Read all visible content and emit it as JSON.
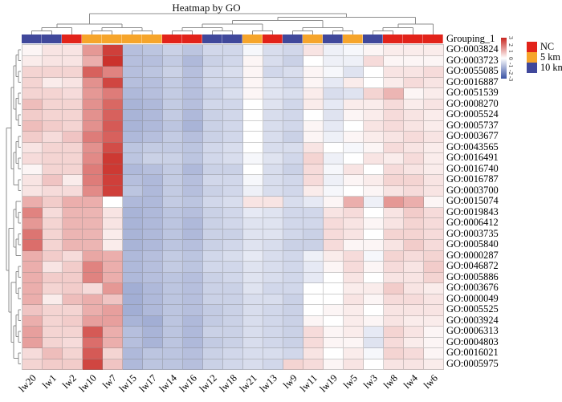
{
  "title": "Heatmap by GO",
  "annotation_row_label": "Grouping_1",
  "legend": {
    "colorbar": {
      "ticks": [
        "3",
        "2",
        "1",
        "0",
        "-1",
        "-2",
        "-3"
      ],
      "high_color": "#C8251F",
      "mid_color": "#FFFFFF",
      "low_color": "#3A53A4"
    },
    "groups": [
      {
        "label": "NC",
        "color": "#E2231A"
      },
      {
        "label": "5 km",
        "color": "#F6A52B"
      },
      {
        "label": "10 km",
        "color": "#40489B"
      }
    ]
  },
  "chart_data": {
    "type": "heatmap",
    "title": "Heatmap by GO",
    "clustered": true,
    "value_range": [
      -3,
      3
    ],
    "color_scale": {
      "high": "#C8251F",
      "mid": "#FFFFFF",
      "low": "#3A53A4",
      "domain": [
        -3,
        0,
        3
      ]
    },
    "columns": [
      "lw20",
      "lw1",
      "lw2",
      "lw10",
      "lw7",
      "lw15",
      "lw17",
      "lw14",
      "lw16",
      "lw12",
      "lw18",
      "lw21",
      "lw13",
      "lw9",
      "lw11",
      "lw19",
      "lw5",
      "lw3",
      "lw8",
      "lw4",
      "lw6"
    ],
    "column_groups": [
      "10 km",
      "10 km",
      "NC",
      "5 km",
      "5 km",
      "5 km",
      "5 km",
      "NC",
      "NC",
      "10 km",
      "10 km",
      "5 km",
      "NC",
      "10 km",
      "5 km",
      "10 km",
      "5 km",
      "10 km",
      "NC",
      "NC",
      "NC"
    ],
    "rows": [
      "GO:0003824",
      "GO:0003723",
      "GO:0055085",
      "GO:0016887",
      "GO:0051539",
      "GO:0008270",
      "GO:0005524",
      "GO:0005737",
      "GO:0003677",
      "GO:0043565",
      "GO:0016491",
      "GO:0016740",
      "GO:0016787",
      "GO:0003700",
      "GO:0015074",
      "GO:0019843",
      "GO:0006412",
      "GO:0003735",
      "GO:0005840",
      "GO:0000287",
      "GO:0046872",
      "GO:0005886",
      "GO:0003676",
      "GO:0000049",
      "GO:0005525",
      "GO:0003924",
      "GO:0006313",
      "GO:0004803",
      "GO:0016021",
      "GO:0005975"
    ],
    "values": [
      [
        0.1,
        0.3,
        0.3,
        1.3,
        2.6,
        -1.0,
        -0.9,
        -0.7,
        -0.9,
        -0.6,
        -0.6,
        -0.1,
        -0.5,
        -0.6,
        0.3,
        -0.2,
        -0.1,
        0.1,
        0.2,
        0.2,
        0.2
      ],
      [
        0.2,
        0.3,
        0.3,
        1.0,
        2.8,
        -1.0,
        -1.0,
        -0.8,
        -1.1,
        -0.7,
        -0.6,
        0.1,
        -0.5,
        -0.7,
        0.0,
        -0.2,
        -0.2,
        0.4,
        0.1,
        0.1,
        0.1
      ],
      [
        0.5,
        0.5,
        0.5,
        2.1,
        1.6,
        -1.0,
        -0.9,
        -0.7,
        -1.0,
        -0.6,
        -0.5,
        0.1,
        -0.6,
        -0.5,
        0.1,
        -0.1,
        -0.4,
        0.0,
        0.3,
        0.3,
        0.4
      ],
      [
        0.5,
        0.2,
        0.3,
        1.4,
        2.5,
        -1.0,
        -1.0,
        -0.8,
        -1.0,
        -0.6,
        -0.6,
        0.1,
        -0.4,
        -0.6,
        0.1,
        -0.3,
        0.2,
        0.0,
        0.2,
        0.4,
        0.3
      ],
      [
        0.5,
        0.5,
        0.4,
        1.3,
        1.7,
        -1.1,
        -1.0,
        -0.8,
        -1.0,
        -0.7,
        -0.5,
        0.1,
        -0.4,
        -0.5,
        0.2,
        -0.5,
        -0.4,
        0.5,
        0.9,
        0.1,
        0.2
      ],
      [
        0.8,
        0.5,
        0.5,
        1.4,
        2.0,
        -1.2,
        -1.1,
        -0.8,
        -1.0,
        -0.6,
        -0.6,
        0.0,
        -0.4,
        -0.6,
        0.2,
        -0.3,
        0.2,
        0.2,
        0.4,
        0.2,
        0.3
      ],
      [
        0.6,
        0.5,
        0.5,
        1.4,
        2.1,
        -1.2,
        -1.1,
        -0.8,
        -1.1,
        -0.7,
        -0.6,
        0.0,
        -0.5,
        -0.6,
        0.0,
        -0.4,
        0.1,
        0.2,
        0.4,
        0.3,
        0.2
      ],
      [
        0.8,
        0.6,
        0.5,
        1.4,
        2.2,
        -1.2,
        -1.1,
        -0.9,
        -1.2,
        -0.7,
        -0.6,
        0.0,
        -0.5,
        -0.6,
        0.1,
        -0.3,
        0.0,
        0.3,
        0.4,
        0.3,
        0.2
      ],
      [
        0.6,
        0.4,
        0.7,
        1.7,
        2.1,
        -1.1,
        -1.0,
        -0.8,
        -1.0,
        -0.7,
        -0.6,
        0.0,
        -0.5,
        -0.7,
        0.1,
        -0.2,
        0.1,
        0.2,
        0.3,
        0.4,
        0.3
      ],
      [
        0.3,
        0.5,
        0.5,
        1.4,
        2.4,
        -0.9,
        -0.8,
        -0.8,
        -0.9,
        -0.6,
        -0.5,
        0.0,
        -0.5,
        -0.5,
        0.3,
        0.0,
        -0.1,
        0.1,
        0.4,
        0.3,
        0.2
      ],
      [
        0.4,
        0.5,
        0.5,
        1.5,
        2.7,
        -0.9,
        -0.7,
        -0.7,
        -0.9,
        -0.6,
        -0.5,
        -0.1,
        -0.4,
        -0.6,
        0.5,
        -0.2,
        0.0,
        0.3,
        0.2,
        0.4,
        0.2
      ],
      [
        0.1,
        0.5,
        0.5,
        1.7,
        2.7,
        -1.1,
        -1.0,
        -0.8,
        -1.1,
        -0.7,
        -0.7,
        0.0,
        -0.5,
        -0.7,
        0.4,
        -0.1,
        0.3,
        0.0,
        0.4,
        0.3,
        0.2
      ],
      [
        0.3,
        0.7,
        0.2,
        1.7,
        2.6,
        -1.0,
        -1.1,
        -0.8,
        -1.0,
        -0.6,
        -0.6,
        -0.1,
        -0.5,
        -0.6,
        0.4,
        -0.2,
        0.1,
        0.2,
        0.5,
        0.5,
        0.3
      ],
      [
        0.3,
        0.4,
        0.4,
        1.5,
        2.6,
        -0.9,
        -1.1,
        -0.8,
        -1.0,
        -0.7,
        -0.6,
        -0.2,
        -0.5,
        -0.6,
        0.2,
        -0.1,
        0.0,
        0.1,
        0.3,
        0.4,
        0.3
      ],
      [
        1.0,
        0.6,
        1.0,
        1.0,
        0.0,
        -1.1,
        -1.1,
        -0.8,
        -0.9,
        -0.6,
        -0.5,
        0.3,
        0.3,
        -0.5,
        -0.3,
        0.1,
        1.0,
        -0.2,
        1.3,
        1.0,
        0.1
      ],
      [
        1.6,
        0.4,
        0.9,
        0.9,
        0.3,
        -1.2,
        -1.1,
        -0.9,
        -1.0,
        -0.7,
        -0.6,
        -0.3,
        -0.4,
        -0.6,
        -0.6,
        0.3,
        0.4,
        0.0,
        0.3,
        0.6,
        0.4
      ],
      [
        1.3,
        0.5,
        0.9,
        0.9,
        0.3,
        -1.2,
        -1.1,
        -0.9,
        -1.1,
        -0.7,
        -0.6,
        -0.4,
        -0.4,
        -0.6,
        -0.6,
        0.4,
        0.3,
        0.1,
        0.3,
        0.5,
        0.4
      ],
      [
        1.8,
        0.5,
        0.9,
        0.9,
        0.2,
        -1.2,
        -1.1,
        -0.9,
        -1.1,
        -0.7,
        -0.7,
        -0.4,
        -0.4,
        -0.6,
        -0.7,
        0.4,
        0.3,
        0.0,
        0.5,
        0.5,
        0.4
      ],
      [
        1.9,
        0.5,
        0.9,
        0.9,
        0.2,
        -1.2,
        -1.1,
        -0.9,
        -1.0,
        -0.7,
        -0.6,
        -0.4,
        -0.5,
        -0.7,
        -0.7,
        0.4,
        0.1,
        0.1,
        0.3,
        0.6,
        0.4
      ],
      [
        1.0,
        0.6,
        0.4,
        1.1,
        1.0,
        -1.1,
        -1.0,
        -0.8,
        -0.9,
        -0.6,
        -0.5,
        -0.3,
        -0.5,
        -0.6,
        -0.2,
        0.2,
        0.4,
        -0.1,
        0.5,
        0.4,
        0.5
      ],
      [
        1.0,
        0.3,
        0.6,
        1.6,
        1.0,
        -1.1,
        -1.0,
        -0.8,
        -0.9,
        -0.6,
        -0.6,
        -0.4,
        -0.5,
        -0.6,
        -0.3,
        0.1,
        0.4,
        0.1,
        0.4,
        0.3,
        0.6
      ],
      [
        1.0,
        0.6,
        0.6,
        1.6,
        1.0,
        -1.1,
        -1.0,
        -0.9,
        -1.0,
        -0.7,
        -0.6,
        -0.4,
        -0.5,
        -0.6,
        -0.3,
        0.0,
        0.3,
        0.0,
        0.3,
        0.3,
        0.5
      ],
      [
        1.0,
        0.5,
        0.6,
        0.4,
        1.3,
        -1.3,
        -1.1,
        -0.9,
        -1.0,
        -0.7,
        -0.7,
        -0.4,
        -0.6,
        -0.6,
        0.0,
        0.0,
        0.2,
        0.2,
        0.6,
        0.3,
        0.2
      ],
      [
        1.0,
        0.2,
        0.8,
        1.0,
        0.7,
        -1.3,
        -1.1,
        -0.9,
        -1.0,
        -0.7,
        -0.7,
        -0.5,
        -0.5,
        -0.7,
        0.0,
        0.0,
        0.3,
        0.1,
        0.4,
        0.4,
        0.3
      ],
      [
        0.7,
        0.5,
        0.5,
        1.0,
        1.2,
        -1.3,
        -1.1,
        -0.9,
        -1.0,
        -0.8,
        -0.7,
        -0.5,
        -0.6,
        -0.7,
        0.0,
        0.1,
        0.2,
        0.0,
        0.3,
        0.3,
        0.3
      ],
      [
        1.0,
        0.5,
        0.6,
        1.2,
        1.2,
        -1.2,
        -1.3,
        -0.9,
        -1.1,
        -0.8,
        -0.7,
        -0.5,
        -0.6,
        -0.7,
        0.1,
        0.0,
        0.2,
        0.1,
        0.3,
        0.2,
        0.2
      ],
      [
        1.2,
        0.5,
        0.5,
        2.2,
        1.0,
        -1.0,
        -1.2,
        -0.9,
        -1.1,
        -0.7,
        -0.7,
        -0.5,
        -0.6,
        -0.7,
        0.4,
        0.1,
        0.2,
        -0.3,
        0.5,
        0.3,
        0.1
      ],
      [
        1.2,
        0.5,
        0.4,
        1.9,
        1.0,
        -1.0,
        -1.2,
        -0.9,
        -1.1,
        -0.8,
        -0.7,
        -0.5,
        -0.6,
        -0.7,
        0.4,
        0.1,
        0.1,
        -0.4,
        0.4,
        0.2,
        0.1
      ],
      [
        0.4,
        0.8,
        0.5,
        2.2,
        0.5,
        -1.1,
        -0.9,
        -0.9,
        -1.0,
        -0.7,
        -0.6,
        -0.5,
        -0.5,
        -0.6,
        0.3,
        0.0,
        0.2,
        -0.1,
        0.5,
        0.4,
        0.1
      ],
      [
        0.5,
        0.6,
        0.6,
        2.5,
        0.7,
        -1.1,
        -0.9,
        -0.9,
        -1.0,
        -0.7,
        -0.6,
        -0.5,
        -0.6,
        0.5,
        0.4,
        0.1,
        0.3,
        0.0,
        0.3,
        0.3,
        0.2
      ]
    ]
  }
}
